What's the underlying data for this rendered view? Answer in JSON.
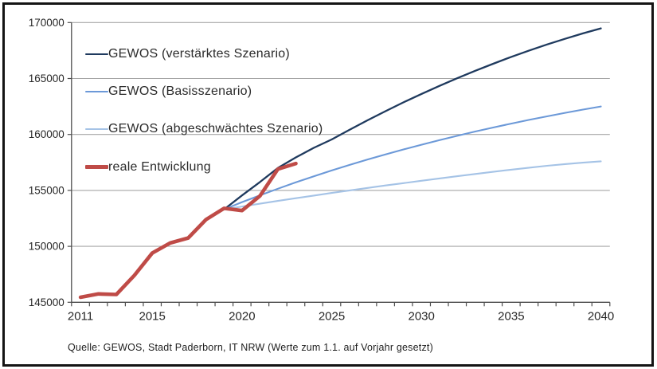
{
  "chart_data": {
    "type": "line",
    "title": "",
    "xlabel": "",
    "ylabel": "",
    "grid": "horizontal",
    "legend_position": "top-left-inside",
    "x_axis": {
      "range": [
        2010.5,
        2040.5
      ],
      "ticks": [
        2011,
        2015,
        2020,
        2025,
        2030,
        2035,
        2040
      ],
      "minor_tick_step": 1
    },
    "y_axis": {
      "range": [
        145000,
        170000
      ],
      "ticks": [
        145000,
        150000,
        155000,
        160000,
        165000,
        170000
      ]
    },
    "series": [
      {
        "name": "GEWOS (verstärktes Szenario)",
        "color": "#1f3a5e",
        "width": 2.3,
        "points": [
          [
            2019,
            153300
          ],
          [
            2020,
            154550
          ],
          [
            2021,
            155750
          ],
          [
            2022,
            157000
          ],
          [
            2023,
            157950
          ],
          [
            2024,
            158800
          ],
          [
            2025,
            159550
          ],
          [
            2026,
            160430
          ],
          [
            2027,
            161270
          ],
          [
            2028,
            162080
          ],
          [
            2029,
            162870
          ],
          [
            2030,
            163620
          ],
          [
            2031,
            164340
          ],
          [
            2032,
            165030
          ],
          [
            2033,
            165690
          ],
          [
            2034,
            166320
          ],
          [
            2035,
            166930
          ],
          [
            2036,
            167500
          ],
          [
            2037,
            168040
          ],
          [
            2038,
            168550
          ],
          [
            2039,
            169030
          ],
          [
            2040,
            169480
          ]
        ]
      },
      {
        "name": "GEWOS (Basisszenario)",
        "color": "#6c99d8",
        "width": 2.1,
        "points": [
          [
            2019,
            153300
          ],
          [
            2020,
            153950
          ],
          [
            2021,
            154560
          ],
          [
            2022,
            155150
          ],
          [
            2023,
            155720
          ],
          [
            2024,
            156260
          ],
          [
            2025,
            156780
          ],
          [
            2026,
            157280
          ],
          [
            2027,
            157760
          ],
          [
            2028,
            158220
          ],
          [
            2029,
            158660
          ],
          [
            2030,
            159080
          ],
          [
            2031,
            159490
          ],
          [
            2032,
            159880
          ],
          [
            2033,
            160260
          ],
          [
            2034,
            160620
          ],
          [
            2035,
            160970
          ],
          [
            2036,
            161300
          ],
          [
            2037,
            161620
          ],
          [
            2038,
            161930
          ],
          [
            2039,
            162220
          ],
          [
            2040,
            162500
          ]
        ]
      },
      {
        "name": "GEWOS (abgeschwächtes Szenario)",
        "color": "#a5c3e6",
        "width": 2.1,
        "points": [
          [
            2019,
            153300
          ],
          [
            2020,
            153560
          ],
          [
            2021,
            153810
          ],
          [
            2022,
            154060
          ],
          [
            2023,
            154300
          ],
          [
            2024,
            154540
          ],
          [
            2025,
            154770
          ],
          [
            2026,
            155000
          ],
          [
            2027,
            155220
          ],
          [
            2028,
            155440
          ],
          [
            2029,
            155650
          ],
          [
            2030,
            155860
          ],
          [
            2031,
            156070
          ],
          [
            2032,
            156270
          ],
          [
            2033,
            156470
          ],
          [
            2034,
            156660
          ],
          [
            2035,
            156850
          ],
          [
            2036,
            157030
          ],
          [
            2037,
            157200
          ],
          [
            2038,
            157350
          ],
          [
            2039,
            157480
          ],
          [
            2040,
            157600
          ]
        ]
      },
      {
        "name": "reale Entwicklung",
        "color": "#bf4b47",
        "width": 4.6,
        "points": [
          [
            2011,
            145450
          ],
          [
            2012,
            145750
          ],
          [
            2013,
            145700
          ],
          [
            2014,
            147400
          ],
          [
            2015,
            149400
          ],
          [
            2016,
            150300
          ],
          [
            2017,
            150750
          ],
          [
            2018,
            152400
          ],
          [
            2019,
            153400
          ],
          [
            2020,
            153200
          ],
          [
            2021,
            154500
          ],
          [
            2022,
            156900
          ],
          [
            2023,
            157400
          ]
        ]
      }
    ],
    "source_note": "Quelle: GEWOS, Stadt Paderborn, IT NRW (Werte zum 1.1. auf Vorjahr gesetzt)"
  },
  "colors": {
    "gridline": "#a6a6a6",
    "axis": "#4d4d4d",
    "tick_label": "#262626",
    "frame_border": "#141414"
  }
}
